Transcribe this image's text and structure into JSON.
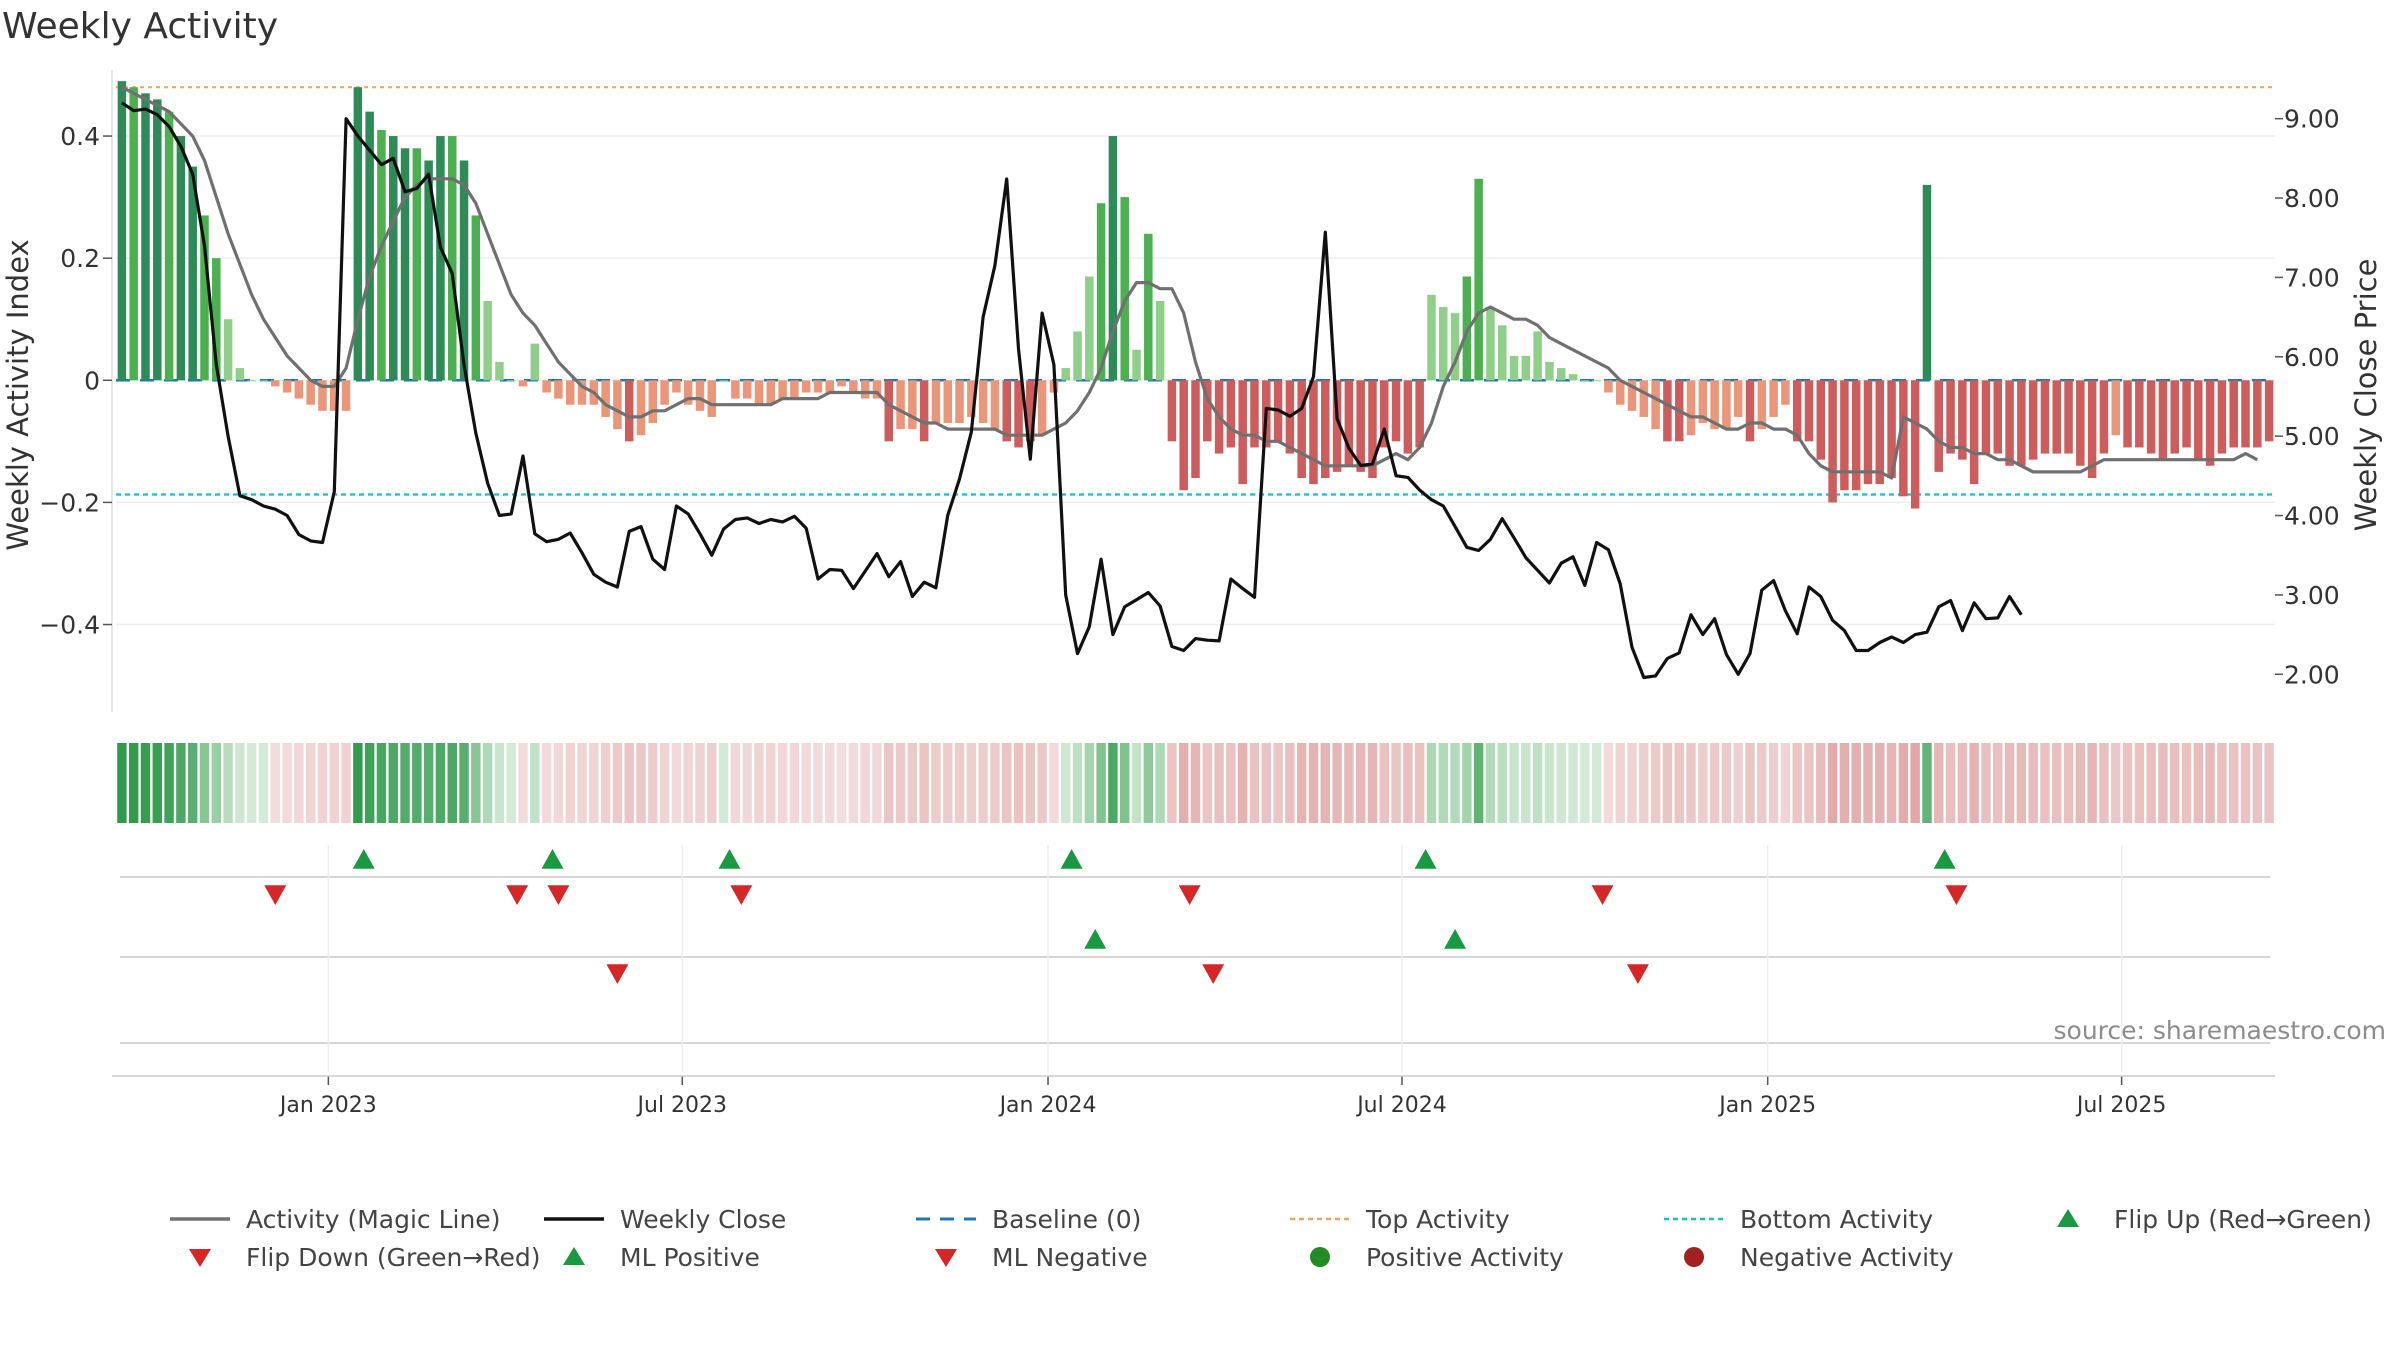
{
  "title": "Weekly Activity",
  "source": "source: sharemaestro.com",
  "colors": {
    "pos_dark": "#2e8b57",
    "pos_mid": "#4caf50",
    "pos_light": "#8fcf8a",
    "neg_dark": "#cd5c5c",
    "neg_light": "#e9967a",
    "magic": "#707070",
    "close": "#111111",
    "baseline": "#1f77b4",
    "top": "#f4a460",
    "bottom": "#17becf",
    "flip_up": "#1a9a40",
    "flip_down": "#d62728",
    "pos_activity": "#228b22",
    "neg_activity": "#a32020"
  },
  "legend": [
    {
      "key": "magic",
      "label": "Activity (Magic Line)",
      "type": "line"
    },
    {
      "key": "close",
      "label": "Weekly Close",
      "type": "line"
    },
    {
      "key": "baseline",
      "label": "Baseline (0)",
      "type": "dash"
    },
    {
      "key": "top",
      "label": "Top Activity",
      "type": "dot"
    },
    {
      "key": "bottom",
      "label": "Bottom Activity",
      "type": "dot"
    },
    {
      "key": "flip_up",
      "label": "Flip Up (Red→Green)",
      "type": "tri-up"
    },
    {
      "key": "flip_down",
      "label": "Flip Down (Green→Red)",
      "type": "tri-down"
    },
    {
      "key": "flip_up",
      "label": "ML Positive",
      "type": "tri-up"
    },
    {
      "key": "flip_down",
      "label": "ML Negative",
      "type": "tri-down"
    },
    {
      "key": "pos_activity",
      "label": "Positive Activity",
      "type": "circle"
    },
    {
      "key": "neg_activity",
      "label": "Negative Activity",
      "type": "circle"
    }
  ],
  "chart_data": {
    "type": "bar",
    "title": "Weekly Activity",
    "ylabel": "Weekly Activity Index",
    "y2label": "Weekly Close Price",
    "ylim": [
      -0.54,
      0.5
    ],
    "y2lim": [
      1.55,
      9.55
    ],
    "yticks": [
      {
        "v": 0.4,
        "label": "0.4"
      },
      {
        "v": 0.2,
        "label": "0.2"
      },
      {
        "v": 0,
        "label": "0"
      },
      {
        "v": -0.2,
        "label": "−0.2"
      },
      {
        "v": -0.4,
        "label": "−0.4"
      }
    ],
    "y2ticks": [
      {
        "v": 9,
        "label": "9.00"
      },
      {
        "v": 8,
        "label": "8.00"
      },
      {
        "v": 7,
        "label": "7.00"
      },
      {
        "v": 6,
        "label": "6.00"
      },
      {
        "v": 5,
        "label": "5.00"
      },
      {
        "v": 4,
        "label": "4.00"
      },
      {
        "v": 3,
        "label": "3.00"
      },
      {
        "v": 2,
        "label": "2.00"
      }
    ],
    "week_range": [
      0,
      182
    ],
    "xticks": [
      {
        "w": 17.5,
        "label": "Jan 2023"
      },
      {
        "w": 47.5,
        "label": "Jul 2023"
      },
      {
        "w": 78.5,
        "label": "Jan 2024"
      },
      {
        "w": 108.5,
        "label": "Jul 2024"
      },
      {
        "w": 139.5,
        "label": "Jan 2025"
      },
      {
        "w": 169.5,
        "label": "Jul 2025"
      }
    ],
    "top_activity": 0.48,
    "bottom_activity": -0.187,
    "activity_index": [
      0.49,
      0.48,
      0.47,
      0.46,
      0.44,
      0.4,
      0.35,
      0.27,
      0.2,
      0.1,
      0.02,
      0.0,
      0.0,
      -0.01,
      -0.02,
      -0.03,
      -0.04,
      -0.05,
      -0.05,
      -0.05,
      0.48,
      0.44,
      0.41,
      0.4,
      0.38,
      0.38,
      0.36,
      0.4,
      0.4,
      0.36,
      0.27,
      0.13,
      0.03,
      0.0,
      -0.01,
      0.06,
      -0.02,
      -0.03,
      -0.04,
      -0.04,
      -0.04,
      -0.06,
      -0.08,
      -0.1,
      -0.09,
      -0.07,
      -0.04,
      -0.02,
      -0.04,
      -0.05,
      -0.06,
      0.0,
      -0.03,
      -0.03,
      -0.04,
      -0.04,
      -0.03,
      -0.03,
      -0.02,
      -0.02,
      -0.02,
      -0.01,
      -0.02,
      -0.03,
      -0.03,
      -0.1,
      -0.08,
      -0.08,
      -0.1,
      -0.07,
      -0.07,
      -0.07,
      -0.06,
      -0.07,
      -0.08,
      -0.1,
      -0.11,
      -0.1,
      -0.09,
      -0.02,
      0.02,
      0.08,
      0.17,
      0.29,
      0.4,
      0.3,
      0.05,
      0.24,
      0.13,
      -0.1,
      -0.18,
      -0.16,
      -0.1,
      -0.12,
      -0.11,
      -0.17,
      -0.11,
      -0.11,
      -0.1,
      -0.12,
      -0.16,
      -0.17,
      -0.16,
      -0.15,
      -0.14,
      -0.15,
      -0.16,
      -0.11,
      -0.1,
      -0.12,
      -0.11,
      0.14,
      0.12,
      0.11,
      0.17,
      0.33,
      0.12,
      0.09,
      0.04,
      0.04,
      0.08,
      0.03,
      0.02,
      0.01,
      0.0,
      0.0,
      -0.02,
      -0.04,
      -0.05,
      -0.06,
      -0.08,
      -0.1,
      -0.1,
      -0.09,
      -0.07,
      -0.08,
      -0.08,
      -0.06,
      -0.1,
      -0.08,
      -0.06,
      -0.04,
      -0.1,
      -0.1,
      -0.13,
      -0.2,
      -0.18,
      -0.18,
      -0.17,
      -0.17,
      -0.16,
      -0.19,
      -0.21,
      0.32,
      -0.15,
      -0.12,
      -0.13,
      -0.17,
      -0.12,
      -0.12,
      -0.14,
      -0.14,
      -0.13,
      -0.12,
      -0.12,
      -0.12,
      -0.14,
      -0.16,
      -0.12,
      -0.09,
      -0.11,
      -0.11,
      -0.12,
      -0.13,
      -0.12,
      -0.11,
      -0.13,
      -0.14,
      -0.12,
      -0.11,
      -0.11,
      -0.11,
      -0.1
    ],
    "magic_line": [
      0.48,
      0.47,
      0.46,
      0.45,
      0.44,
      0.42,
      0.4,
      0.36,
      0.3,
      0.24,
      0.19,
      0.14,
      0.1,
      0.07,
      0.04,
      0.02,
      0.0,
      -0.01,
      -0.01,
      0.02,
      0.1,
      0.17,
      0.22,
      0.26,
      0.3,
      0.32,
      0.33,
      0.33,
      0.33,
      0.32,
      0.29,
      0.24,
      0.19,
      0.14,
      0.11,
      0.09,
      0.06,
      0.03,
      0.01,
      -0.01,
      -0.02,
      -0.04,
      -0.05,
      -0.06,
      -0.06,
      -0.05,
      -0.05,
      -0.04,
      -0.03,
      -0.03,
      -0.04,
      -0.04,
      -0.04,
      -0.04,
      -0.04,
      -0.04,
      -0.03,
      -0.03,
      -0.03,
      -0.03,
      -0.02,
      -0.02,
      -0.02,
      -0.02,
      -0.02,
      -0.04,
      -0.05,
      -0.06,
      -0.07,
      -0.07,
      -0.08,
      -0.08,
      -0.08,
      -0.08,
      -0.08,
      -0.09,
      -0.09,
      -0.09,
      -0.09,
      -0.08,
      -0.07,
      -0.05,
      -0.02,
      0.02,
      0.08,
      0.13,
      0.16,
      0.16,
      0.15,
      0.15,
      0.11,
      0.03,
      -0.03,
      -0.06,
      -0.08,
      -0.09,
      -0.09,
      -0.1,
      -0.1,
      -0.11,
      -0.12,
      -0.13,
      -0.14,
      -0.14,
      -0.14,
      -0.14,
      -0.14,
      -0.13,
      -0.12,
      -0.13,
      -0.11,
      -0.07,
      -0.01,
      0.03,
      0.08,
      0.11,
      0.12,
      0.11,
      0.1,
      0.1,
      0.09,
      0.07,
      0.06,
      0.05,
      0.04,
      0.03,
      0.02,
      0.0,
      -0.01,
      -0.02,
      -0.03,
      -0.04,
      -0.05,
      -0.06,
      -0.06,
      -0.07,
      -0.08,
      -0.08,
      -0.07,
      -0.07,
      -0.08,
      -0.08,
      -0.09,
      -0.12,
      -0.14,
      -0.15,
      -0.15,
      -0.15,
      -0.15,
      -0.15,
      -0.16,
      -0.06,
      -0.07,
      -0.08,
      -0.1,
      -0.11,
      -0.11,
      -0.12,
      -0.12,
      -0.13,
      -0.13,
      -0.14,
      -0.15,
      -0.15,
      -0.15,
      -0.15,
      -0.15,
      -0.14,
      -0.13,
      -0.13,
      -0.13,
      -0.13,
      -0.13,
      -0.13,
      -0.13,
      -0.13,
      -0.13,
      -0.13,
      -0.13,
      -0.13,
      -0.12,
      -0.13
    ],
    "weekly_close": [
      9.2,
      9.1,
      9.12,
      9.05,
      8.9,
      8.65,
      8.3,
      7.4,
      5.9,
      5.0,
      4.25,
      4.2,
      4.12,
      4.08,
      4.0,
      3.76,
      3.68,
      3.66,
      4.3,
      9.0,
      8.78,
      8.6,
      8.42,
      8.5,
      8.08,
      8.12,
      8.3,
      7.38,
      7.05,
      5.9,
      5.04,
      4.41,
      4.0,
      4.02,
      4.75,
      3.77,
      3.67,
      3.7,
      3.78,
      3.53,
      3.26,
      3.16,
      3.1,
      3.8,
      3.86,
      3.45,
      3.32,
      4.12,
      4.02,
      3.77,
      3.5,
      3.83,
      3.95,
      3.97,
      3.9,
      3.95,
      3.92,
      3.99,
      3.84,
      3.2,
      3.32,
      3.31,
      3.08,
      3.3,
      3.52,
      3.23,
      3.42,
      2.98,
      3.16,
      3.09,
      4.0,
      4.46,
      5.05,
      6.5,
      7.15,
      8.24,
      6.1,
      4.71,
      6.55,
      5.9,
      3.0,
      2.26,
      2.6,
      3.45,
      2.5,
      2.85,
      2.94,
      3.03,
      2.86,
      2.35,
      2.3,
      2.45,
      2.43,
      2.42,
      3.2,
      3.08,
      2.97,
      5.35,
      5.33,
      5.25,
      5.35,
      5.75,
      7.57,
      5.22,
      4.85,
      4.63,
      4.65,
      5.09,
      4.5,
      4.48,
      4.32,
      4.2,
      4.12,
      3.86,
      3.6,
      3.56,
      3.7,
      3.96,
      3.72,
      3.47,
      3.31,
      3.15,
      3.4,
      3.48,
      3.12,
      3.66,
      3.57,
      3.14,
      2.34,
      1.96,
      1.98,
      2.2,
      2.27,
      2.75,
      2.5,
      2.7,
      2.25,
      2.0,
      2.26,
      3.06,
      3.18,
      2.8,
      2.51,
      3.1,
      2.98,
      2.68,
      2.55,
      2.3,
      2.3,
      2.4,
      2.47,
      2.4,
      2.5,
      2.53,
      2.85,
      2.93,
      2.55,
      2.9,
      2.7,
      2.71,
      2.98,
      2.75
    ],
    "flip_up": [
      20.5,
      36.5,
      51.5,
      80.5,
      110.5,
      154.5
    ],
    "flip_down": [
      13,
      33.5,
      37,
      52.5,
      90.5,
      125.5,
      155.5
    ],
    "ml_positive": [
      82.5,
      113
    ],
    "ml_negative": [
      42,
      92.5,
      128.5
    ]
  }
}
